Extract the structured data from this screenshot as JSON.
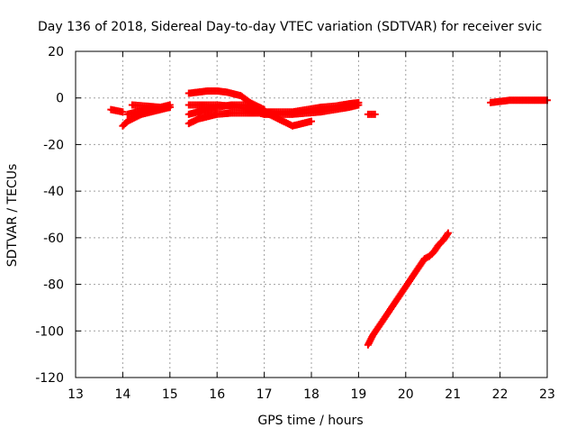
{
  "chart_data": {
    "type": "scatter",
    "title": "Day 136 of 2018, Sidereal Day-to-day VTEC variation (SDTVAR) for receiver svic",
    "xlabel": "GPS time / hours",
    "ylabel": "SDTVAR / TECUs",
    "xlim": [
      13,
      23
    ],
    "ylim": [
      -120,
      20
    ],
    "xticks": [
      "13",
      "14",
      "15",
      "16",
      "17",
      "18",
      "19",
      "20",
      "21",
      "22",
      "23"
    ],
    "yticks": [
      "20",
      "0",
      "-20",
      "-40",
      "-60",
      "-80",
      "-100",
      "-120"
    ],
    "grid": true,
    "marker": "plus",
    "color": "#ff0000",
    "series": [
      {
        "x": [
          13.75,
          14.0
        ],
        "y": [
          -5,
          -6
        ]
      },
      {
        "x": [
          14.0,
          14.1,
          14.2,
          14.4,
          14.6,
          14.8,
          15.0
        ],
        "y": [
          -12,
          -10,
          -9,
          -7,
          -6,
          -5,
          -4
        ]
      },
      {
        "x": [
          14.1,
          14.3,
          14.5,
          14.7,
          15.0
        ],
        "y": [
          -7,
          -6,
          -5,
          -4.5,
          -4
        ]
      },
      {
        "x": [
          14.2,
          14.5,
          14.8,
          15.0
        ],
        "y": [
          -3,
          -3.5,
          -4,
          -3
        ]
      },
      {
        "x": [
          15.4,
          15.6,
          15.8,
          16.0,
          16.2,
          16.5,
          16.7,
          16.9,
          17.0,
          17.2,
          17.4,
          17.6,
          17.8,
          18.0
        ],
        "y": [
          2,
          2.5,
          3,
          3,
          2.5,
          1,
          -2,
          -4,
          -6,
          -8,
          -10,
          -12,
          -11,
          -10
        ]
      },
      {
        "x": [
          15.4,
          15.6,
          15.8,
          16.0,
          16.3,
          16.6,
          16.9,
          17.0
        ],
        "y": [
          -11,
          -9,
          -8,
          -7,
          -6.5,
          -6.5,
          -6.5,
          -7
        ]
      },
      {
        "x": [
          15.4,
          15.7,
          16.0,
          16.3,
          16.6,
          16.9,
          17.0
        ],
        "y": [
          -3,
          -3,
          -3,
          -3.5,
          -4.5,
          -6,
          -6.5
        ]
      },
      {
        "x": [
          15.4,
          15.7,
          16.0,
          16.3,
          16.6,
          16.9,
          17.0
        ],
        "y": [
          -7,
          -5.5,
          -4,
          -3,
          -3,
          -4,
          -5
        ]
      },
      {
        "x": [
          17.0,
          17.3,
          17.6,
          17.9,
          18.2,
          18.5,
          18.8,
          19.0
        ],
        "y": [
          -7,
          -7,
          -7,
          -6.5,
          -6,
          -5,
          -4,
          -3
        ]
      },
      {
        "x": [
          17.0,
          17.3,
          17.6,
          17.9,
          18.2,
          18.5,
          18.8,
          19.0
        ],
        "y": [
          -6,
          -6,
          -6,
          -5,
          -4,
          -3.5,
          -2.5,
          -2
        ]
      },
      {
        "x": [
          19.2,
          19.35
        ],
        "y": [
          -7,
          -7
        ]
      },
      {
        "x": [
          19.2,
          19.3,
          19.4,
          19.5,
          19.6,
          19.7,
          19.8,
          19.9,
          20.0,
          20.1,
          20.2,
          20.3,
          20.4,
          20.5,
          20.6,
          20.7,
          20.8,
          20.9
        ],
        "y": [
          -106,
          -102,
          -99,
          -96,
          -93,
          -90,
          -87,
          -84,
          -81,
          -78,
          -75,
          -72,
          -69,
          -68,
          -66,
          -63,
          -61,
          -58
        ]
      },
      {
        "x": [
          21.8,
          22.0,
          22.2,
          22.4,
          22.6,
          22.8,
          23.0
        ],
        "y": [
          -2,
          -1.5,
          -1,
          -1,
          -1,
          -1,
          -1
        ]
      }
    ]
  }
}
